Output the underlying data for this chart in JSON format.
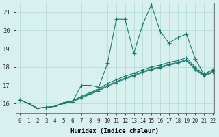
{
  "xlabel": "Humidex (Indice chaleur)",
  "background_color": "#d8f0ee",
  "grid_color": "#b0d8d4",
  "line_color": "#1a7a6e",
  "xlim": [
    -0.5,
    22.2
  ],
  "ylim": [
    15.5,
    21.5
  ],
  "yticks": [
    16,
    17,
    18,
    19,
    20,
    21
  ],
  "xtick_labels": [
    "0",
    "1",
    "2",
    "3",
    "4",
    "5",
    "6",
    "7",
    "8",
    "9",
    "10",
    "11",
    "12",
    "13",
    "14",
    "15",
    "16",
    "17",
    "18",
    "19",
    "20",
    "21",
    "22"
  ],
  "series": [
    {
      "x": [
        0,
        1,
        2,
        3,
        4,
        5,
        6,
        7,
        8,
        9,
        10,
        11,
        12,
        13,
        14,
        15,
        16,
        17,
        18,
        19,
        20,
        21,
        22
      ],
      "y": [
        16.2,
        16.0,
        15.75,
        15.8,
        15.85,
        16.0,
        16.1,
        17.0,
        17.0,
        16.9,
        18.2,
        20.6,
        20.6,
        18.75,
        20.3,
        21.4,
        19.95,
        19.3,
        19.6,
        19.8,
        18.45,
        17.6,
        17.85
      ]
    },
    {
      "x": [
        0,
        1,
        2,
        3,
        4,
        5,
        6,
        7,
        8,
        9,
        10,
        11,
        12,
        13,
        14,
        15,
        16,
        17,
        18,
        19,
        20,
        21,
        22
      ],
      "y": [
        16.2,
        16.0,
        15.75,
        15.8,
        15.85,
        16.05,
        16.15,
        16.4,
        16.6,
        16.8,
        17.1,
        17.3,
        17.5,
        17.65,
        17.85,
        18.0,
        18.1,
        18.25,
        18.35,
        18.5,
        18.0,
        17.6,
        17.85
      ]
    },
    {
      "x": [
        0,
        1,
        2,
        3,
        4,
        5,
        6,
        7,
        8,
        9,
        10,
        11,
        12,
        13,
        14,
        15,
        16,
        17,
        18,
        19,
        20,
        21,
        22
      ],
      "y": [
        16.2,
        16.0,
        15.75,
        15.8,
        15.85,
        16.05,
        16.15,
        16.35,
        16.55,
        16.75,
        17.0,
        17.2,
        17.4,
        17.55,
        17.75,
        17.9,
        18.0,
        18.15,
        18.25,
        18.4,
        17.9,
        17.55,
        17.75
      ]
    },
    {
      "x": [
        0,
        1,
        2,
        3,
        4,
        5,
        6,
        7,
        8,
        9,
        10,
        11,
        12,
        13,
        14,
        15,
        16,
        17,
        18,
        19,
        20,
        21,
        22
      ],
      "y": [
        16.2,
        16.0,
        15.75,
        15.8,
        15.85,
        16.05,
        16.1,
        16.3,
        16.5,
        16.7,
        16.95,
        17.15,
        17.35,
        17.5,
        17.7,
        17.85,
        17.95,
        18.1,
        18.2,
        18.35,
        17.85,
        17.5,
        17.7
      ]
    }
  ]
}
